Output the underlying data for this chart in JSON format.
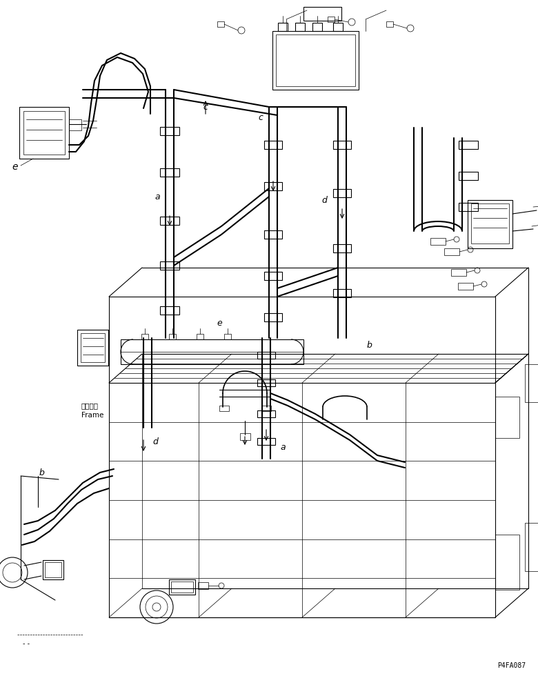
{
  "bg_color": "#ffffff",
  "line_color": "#000000",
  "fig_width": 7.8,
  "fig_height": 9.8,
  "dpi": 100,
  "part_number": "P4FA087",
  "frame_label_ja": "フレーム",
  "frame_label_en": "Frame"
}
